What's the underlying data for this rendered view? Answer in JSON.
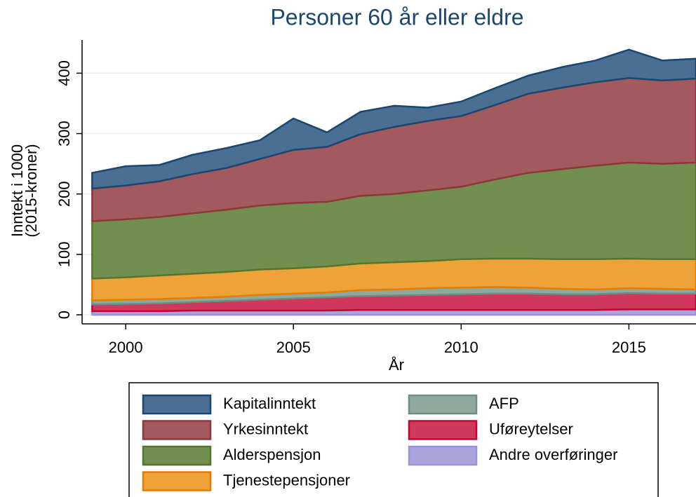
{
  "chart_data": {
    "type": "stacked_area",
    "title": "Personer 60 år eller eldre",
    "ylabel": [
      "Inntekt i 1000",
      "(2015-kroner)"
    ],
    "xlabel": "År",
    "x": [
      1999,
      2000,
      2001,
      2002,
      2003,
      2004,
      2005,
      2006,
      2007,
      2008,
      2009,
      2010,
      2011,
      2012,
      2013,
      2014,
      2015,
      2016,
      2017
    ],
    "xlim": [
      1998.7,
      2017
    ],
    "xticks": [
      2000,
      2005,
      2010,
      2015
    ],
    "ylim": [
      -15,
      455
    ],
    "yticks": [
      0,
      100,
      200,
      300,
      400
    ],
    "grid": true,
    "series": [
      {
        "name": "Kapitalinntekt",
        "color": "#4a6e94",
        "edge": "#1a476f",
        "values": [
          26,
          32,
          27,
          32,
          33,
          31,
          52,
          24,
          37,
          35,
          22,
          24,
          28,
          30,
          34,
          36,
          47,
          33,
          33
        ]
      },
      {
        "name": "Yrkesinntekt",
        "color": "#a35a5f",
        "edge": "#90353b",
        "values": [
          54,
          56,
          59,
          65,
          69,
          77,
          88,
          91,
          102,
          111,
          115,
          117,
          123,
          131,
          135,
          138,
          140,
          138,
          139
        ]
      },
      {
        "name": "Alderspensjon",
        "color": "#71904f",
        "edge": "#55752f",
        "values": [
          95,
          96,
          97,
          100,
          103,
          106,
          108,
          107,
          112,
          113,
          117,
          120,
          131,
          142,
          149,
          155,
          159,
          158,
          160
        ]
      },
      {
        "name": "Tjenestepensjoner",
        "color": "#eda23a",
        "edge": "#e37e00",
        "values": [
          36,
          37,
          39,
          40,
          41,
          42,
          42,
          43,
          44,
          45,
          45,
          47,
          47,
          48,
          49,
          50,
          49,
          49,
          50
        ]
      },
      {
        "name": "AFP",
        "color": "#8fa99d",
        "edge": "#6e8e84",
        "values": [
          7,
          7,
          7,
          7,
          7,
          8,
          8,
          8,
          10,
          10,
          11,
          11,
          11,
          10,
          9,
          8,
          8,
          8,
          7
        ]
      },
      {
        "name": "Uføreytelser",
        "color": "#d0395b",
        "edge": "#c10534",
        "values": [
          11,
          12,
          13,
          14,
          16,
          18,
          20,
          22,
          23,
          24,
          25,
          26,
          27,
          27,
          26,
          26,
          27,
          26,
          26
        ]
      },
      {
        "name": "Andre overføringer",
        "color": "#a9a4dc",
        "edge": "#9a93da",
        "values": [
          6,
          6,
          6,
          7,
          7,
          7,
          7,
          7,
          8,
          8,
          8,
          8,
          8,
          8,
          8,
          8,
          9,
          9,
          9
        ]
      }
    ]
  }
}
